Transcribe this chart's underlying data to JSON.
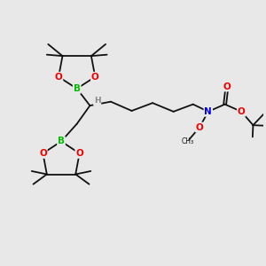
{
  "background_color": "#e8e8e8",
  "atom_colors": {
    "B": "#00bb00",
    "O": "#ee0000",
    "N": "#0000ee",
    "C": "#111111",
    "H": "#888888"
  },
  "bond_color": "#111111",
  "bond_width": 1.3,
  "figsize": [
    3.0,
    3.0
  ],
  "dpi": 100,
  "xlim": [
    0,
    10
  ],
  "ylim": [
    0,
    10
  ]
}
